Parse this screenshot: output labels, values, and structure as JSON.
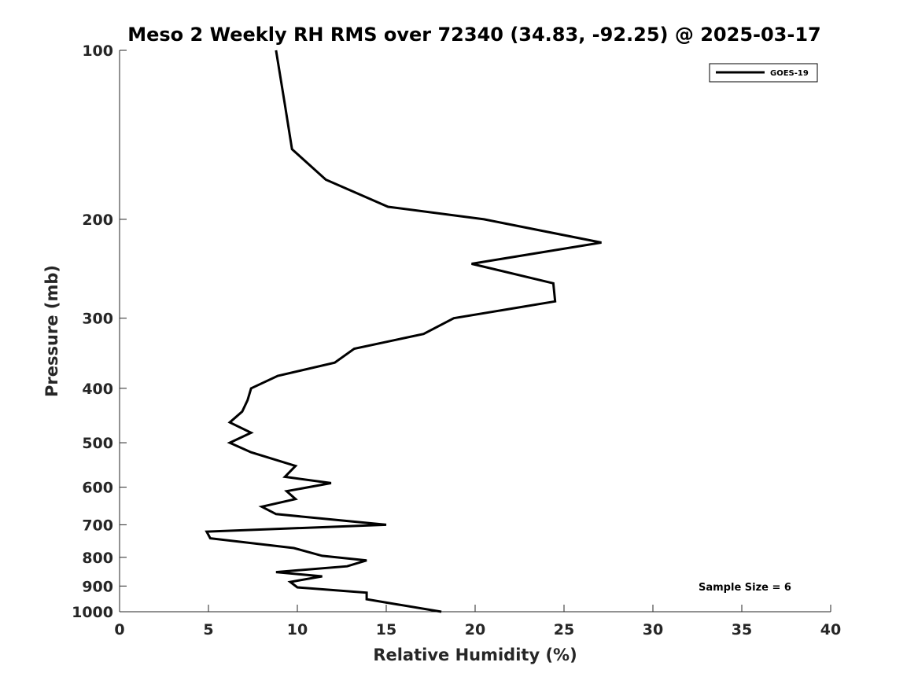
{
  "chart_data": {
    "type": "line",
    "title": "Meso 2 Weekly RH RMS over 72340 (34.83, -92.25) @ 2025-03-17",
    "xlabel": "Relative Humidity (%)",
    "ylabel": "Pressure (mb)",
    "xlim": [
      0,
      40
    ],
    "ylim": [
      100,
      1000
    ],
    "y_scale": "log",
    "y_reversed": true,
    "xticks": [
      0,
      5,
      10,
      15,
      20,
      25,
      30,
      35,
      40
    ],
    "yticks": [
      100,
      200,
      300,
      400,
      500,
      600,
      700,
      800,
      900,
      1000
    ],
    "grid": false,
    "legend_position": "top-right",
    "annotation": "Sample Size = 6",
    "series": [
      {
        "name": "GOES-19",
        "color": "#000000",
        "points": [
          [
            8.8,
            100
          ],
          [
            9.3,
            125
          ],
          [
            9.7,
            150
          ],
          [
            11.6,
            170
          ],
          [
            15.1,
            190
          ],
          [
            20.5,
            200
          ],
          [
            27.1,
            220
          ],
          [
            19.8,
            240
          ],
          [
            24.4,
            260
          ],
          [
            24.5,
            280
          ],
          [
            18.8,
            300
          ],
          [
            17.1,
            320
          ],
          [
            13.2,
            340
          ],
          [
            12.1,
            360
          ],
          [
            8.9,
            380
          ],
          [
            7.4,
            400
          ],
          [
            7.2,
            420
          ],
          [
            6.9,
            440
          ],
          [
            6.2,
            460
          ],
          [
            7.4,
            480
          ],
          [
            6.2,
            500
          ],
          [
            7.4,
            520
          ],
          [
            9.9,
            550
          ],
          [
            9.3,
            575
          ],
          [
            11.9,
            590
          ],
          [
            9.4,
            610
          ],
          [
            9.9,
            630
          ],
          [
            8.0,
            650
          ],
          [
            8.8,
            670
          ],
          [
            15.0,
            700
          ],
          [
            4.9,
            720
          ],
          [
            5.1,
            740
          ],
          [
            9.8,
            770
          ],
          [
            11.4,
            795
          ],
          [
            13.9,
            810
          ],
          [
            12.8,
            830
          ],
          [
            8.8,
            850
          ],
          [
            11.4,
            865
          ],
          [
            9.6,
            885
          ],
          [
            10.0,
            905
          ],
          [
            13.9,
            925
          ],
          [
            13.9,
            950
          ],
          [
            15.6,
            970
          ],
          [
            18.1,
            1000
          ]
        ]
      }
    ]
  }
}
